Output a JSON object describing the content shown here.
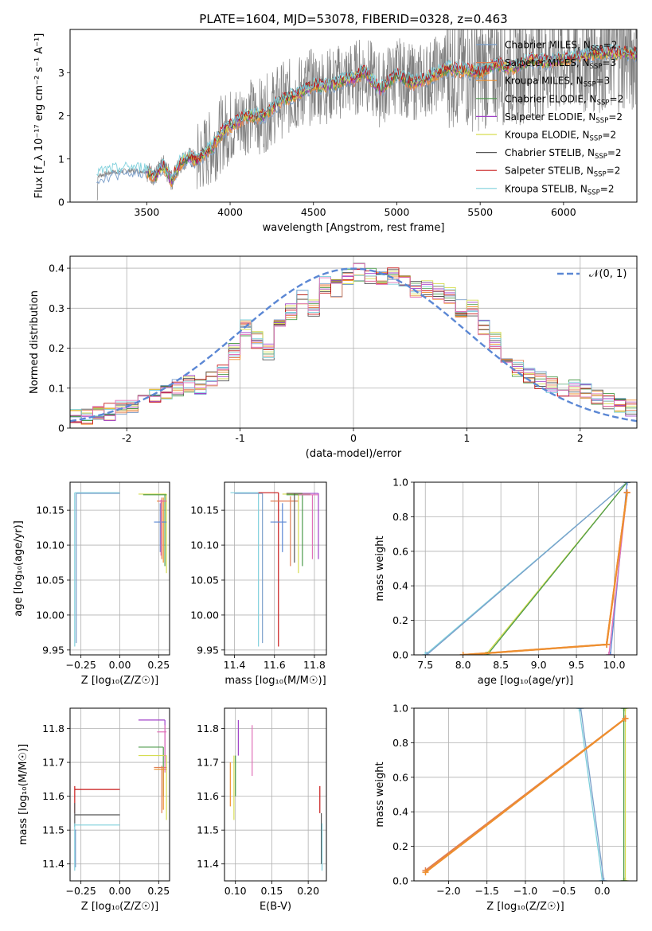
{
  "figure": {
    "title": "PLATE=1604, MJD=53078, FIBERID=0328, z=0.463"
  },
  "colors": {
    "data": "#808080",
    "gauss": "#5b87d4",
    "chabrier_miles": "#7a9ec9",
    "salpeter_miles": "#e07f55",
    "kroupa_miles": "#ee8f2e",
    "chabrier_elodie": "#4c9a4a",
    "salpeter_elodie": "#a040c8",
    "kroupa_elodie": "#d6dd50",
    "chabrier_stelib": "#555555",
    "salpeter_stelib": "#c81818",
    "kroupa_stelib": "#7fd0dc",
    "pink": "#e070b8"
  },
  "chart_data": [
    {
      "id": "spectrum",
      "type": "line",
      "xlabel": "wavelength [Angstrom, rest frame]",
      "ylabel": "Flux [f_λ 10⁻¹⁷ erg cm⁻² s⁻¹ A⁻¹]",
      "xlim": [
        3040,
        6440
      ],
      "ylim": [
        0,
        4
      ],
      "xticks": [
        3500,
        4000,
        4500,
        5000,
        5500,
        6000
      ],
      "yticks": [
        0,
        1,
        2,
        3
      ],
      "grid": false,
      "legend_position": "top-right",
      "legend": [
        {
          "label": "Chabrier MILES, N_SSP=2",
          "color_key": "chabrier_miles"
        },
        {
          "label": "Salpeter MILES, N_SSP=3",
          "color_key": "salpeter_miles"
        },
        {
          "label": "Kroupa MILES, N_SSP=3",
          "color_key": "kroupa_miles"
        },
        {
          "label": "Chabrier ELODIE, N_SSP=2",
          "color_key": "chabrier_elodie"
        },
        {
          "label": "Salpeter ELODIE, N_SSP=2",
          "color_key": "salpeter_elodie"
        },
        {
          "label": "Kroupa ELODIE, N_SSP=2",
          "color_key": "kroupa_elodie"
        },
        {
          "label": "Chabrier STELIB, N_SSP=2",
          "color_key": "chabrier_stelib"
        },
        {
          "label": "Salpeter STELIB, N_SSP=2",
          "color_key": "salpeter_stelib"
        },
        {
          "label": "Kroupa STELIB, N_SSP=2",
          "color_key": "kroupa_stelib"
        }
      ],
      "model_continuum": {
        "x": [
          3200,
          3300,
          3400,
          3500,
          3550,
          3600,
          3650,
          3700,
          3750,
          3800,
          3850,
          3900,
          3950,
          4000,
          4100,
          4200,
          4300,
          4400,
          4500,
          4600,
          4700,
          4750,
          4800,
          4900,
          5000,
          5100,
          5200,
          5300,
          5400,
          5500,
          5600,
          5700,
          5800,
          5900,
          6000,
          6100,
          6200
        ],
        "y": [
          0.6,
          0.7,
          0.73,
          0.72,
          0.6,
          0.85,
          0.5,
          0.9,
          1.05,
          0.95,
          1.15,
          1.3,
          1.6,
          1.75,
          2.0,
          2.0,
          2.35,
          2.5,
          2.7,
          2.7,
          2.85,
          2.85,
          3.05,
          2.6,
          2.95,
          2.75,
          2.9,
          3.1,
          3.05,
          3.0,
          3.2,
          3.1,
          3.3,
          3.25,
          3.3,
          3.4,
          3.45
        ]
      },
      "observed_x_range": [
        3200,
        6440
      ]
    },
    {
      "id": "residuals",
      "type": "line",
      "xlabel": "(data-model)/error",
      "ylabel": "Normed distribution",
      "xlim": [
        -2.5,
        2.5
      ],
      "ylim": [
        0,
        0.43
      ],
      "xticks": [
        -2,
        -1,
        0,
        1,
        2
      ],
      "yticks": [
        0.0,
        0.1,
        0.2,
        0.3,
        0.4
      ],
      "grid": true,
      "legend_position": "top-right",
      "legend": [
        {
          "label": "𝒩(0, 1)",
          "color_key": "gauss"
        }
      ],
      "histogram": {
        "bin_width": 0.1,
        "x_start": -2.5,
        "values": [
          0.03,
          0.03,
          0.035,
          0.04,
          0.05,
          0.06,
          0.07,
          0.08,
          0.09,
          0.1,
          0.11,
          0.1,
          0.12,
          0.14,
          0.19,
          0.25,
          0.22,
          0.19,
          0.26,
          0.29,
          0.33,
          0.3,
          0.36,
          0.35,
          0.38,
          0.39,
          0.38,
          0.37,
          0.38,
          0.36,
          0.35,
          0.35,
          0.34,
          0.33,
          0.3,
          0.3,
          0.25,
          0.22,
          0.18,
          0.15,
          0.13,
          0.12,
          0.11,
          0.1,
          0.1,
          0.09,
          0.08,
          0.07,
          0.06,
          0.05
        ]
      }
    },
    {
      "id": "age_vs_Z",
      "type": "scatter",
      "xlabel": "Z [log₁₀(Z/Z☉)]",
      "ylabel": "age  [log₁₀(age/yr)]",
      "xlim": [
        -0.32,
        0.32
      ],
      "ylim": [
        9.943,
        10.19
      ],
      "xticks": [
        -0.25,
        0.0,
        0.25
      ],
      "xtick_labels": [
        "−0.25",
        "0.00",
        "0.25"
      ],
      "yticks": [
        9.95,
        10.0,
        10.05,
        10.1,
        10.15
      ],
      "ytick_labels": [
        "9.95",
        "10.00",
        "10.05",
        "10.10",
        "10.15"
      ],
      "grid": true
    },
    {
      "id": "age_vs_mass",
      "type": "scatter",
      "xlabel": "mass [log₁₀(M/M☉)]",
      "ylabel": "",
      "xlim": [
        11.35,
        11.86
      ],
      "ylim": [
        9.943,
        10.19
      ],
      "xticks": [
        11.4,
        11.6,
        11.8
      ],
      "xtick_labels": [
        "11.4",
        "11.6",
        "11.8"
      ],
      "yticks": [
        9.95,
        10.0,
        10.05,
        10.1,
        10.15
      ],
      "ytick_labels": [
        "9.95",
        "10.00",
        "10.05",
        "10.10",
        "10.15"
      ],
      "grid": true
    },
    {
      "id": "massweight_vs_age",
      "type": "line",
      "xlabel": "age  [log₁₀(age/yr)]",
      "ylabel": "mass weight",
      "xlim": [
        7.35,
        10.3
      ],
      "ylim": [
        0,
        1
      ],
      "xticks": [
        7.5,
        8.0,
        8.5,
        9.0,
        9.5,
        10.0
      ],
      "xtick_labels": [
        "7.5",
        "8.0",
        "8.5",
        "9.0",
        "9.5",
        "10.0"
      ],
      "yticks": [
        0.0,
        0.2,
        0.4,
        0.6,
        0.8,
        1.0
      ],
      "ytick_labels": [
        "0.0",
        "0.2",
        "0.4",
        "0.6",
        "0.8",
        "1.0"
      ],
      "grid": true,
      "series": [
        {
          "color_key": "kroupa_stelib",
          "x": [
            7.5,
            10.17
          ],
          "y": [
            0.0,
            1.0
          ]
        },
        {
          "color_key": "chabrier_miles",
          "x": [
            7.52,
            10.17
          ],
          "y": [
            0.0,
            1.0
          ]
        },
        {
          "color_key": "kroupa_elodie",
          "x": [
            8.3,
            10.17
          ],
          "y": [
            0.0,
            1.0
          ]
        },
        {
          "color_key": "chabrier_elodie",
          "x": [
            8.32,
            10.17
          ],
          "y": [
            0.0,
            1.0
          ]
        },
        {
          "color_key": "gauss",
          "x": [
            9.95,
            10.17
          ],
          "y": [
            0.0,
            1.0
          ]
        },
        {
          "color_key": "pink",
          "x": [
            9.93,
            10.17
          ],
          "y": [
            0.0,
            0.94
          ]
        },
        {
          "color_key": "salpeter_miles",
          "x": [
            8.0,
            9.9,
            10.17
          ],
          "y": [
            0.0,
            0.06,
            0.94
          ]
        },
        {
          "color_key": "kroupa_miles",
          "x": [
            8.0,
            9.9,
            10.17
          ],
          "y": [
            0.0,
            0.06,
            0.94
          ]
        }
      ]
    },
    {
      "id": "mass_vs_Z",
      "type": "scatter",
      "xlabel": "Z [log₁₀(Z/Z☉)]",
      "ylabel": "mass [log₁₀(M/M☉)]",
      "xlim": [
        -0.32,
        0.32
      ],
      "ylim": [
        11.35,
        11.86
      ],
      "xticks": [
        -0.25,
        0.0,
        0.25
      ],
      "xtick_labels": [
        "−0.25",
        "0.00",
        "0.25"
      ],
      "yticks": [
        11.4,
        11.5,
        11.6,
        11.7,
        11.8
      ],
      "ytick_labels": [
        "11.4",
        "11.5",
        "11.6",
        "11.7",
        "11.8"
      ],
      "grid": true
    },
    {
      "id": "mass_vs_EBV",
      "type": "scatter",
      "xlabel": "E(B-V)",
      "ylabel": "",
      "xlim": [
        0.085,
        0.225
      ],
      "ylim": [
        11.35,
        11.86
      ],
      "xticks": [
        0.1,
        0.15,
        0.2
      ],
      "xtick_labels": [
        "0.10",
        "0.15",
        "0.20"
      ],
      "yticks": [
        11.4,
        11.5,
        11.6,
        11.7,
        11.8
      ],
      "ytick_labels": [
        "11.4",
        "11.5",
        "11.6",
        "11.7",
        "11.8"
      ],
      "grid": true
    },
    {
      "id": "massweight_vs_Z",
      "type": "line",
      "xlabel": "Z [log₁₀(Z/Z☉)]",
      "ylabel": "mass weight",
      "xlim": [
        -2.45,
        0.45
      ],
      "ylim": [
        0,
        1
      ],
      "xticks": [
        -2.0,
        -1.5,
        -1.0,
        -0.5,
        0.0
      ],
      "xtick_labels": [
        "−2.0",
        "−1.5",
        "−1.0",
        "−0.5",
        "0.0"
      ],
      "yticks": [
        0.0,
        0.2,
        0.4,
        0.6,
        0.8,
        1.0
      ],
      "ytick_labels": [
        "0.0",
        "0.2",
        "0.4",
        "0.6",
        "0.8",
        "1.0"
      ],
      "grid": true,
      "series": [
        {
          "color_key": "kroupa_stelib",
          "x": [
            -0.3,
            0.0
          ],
          "y": [
            1.0,
            0.0
          ]
        },
        {
          "color_key": "chabrier_miles",
          "x": [
            -0.28,
            0.02
          ],
          "y": [
            1.0,
            0.0
          ]
        },
        {
          "color_key": "kroupa_elodie",
          "x": [
            0.3,
            0.3
          ],
          "y": [
            0.0,
            1.0
          ]
        },
        {
          "color_key": "chabrier_elodie",
          "x": [
            0.28,
            0.28
          ],
          "y": [
            0.0,
            1.0
          ]
        },
        {
          "color_key": "salpeter_miles",
          "x": [
            -2.3,
            0.3
          ],
          "y": [
            0.06,
            0.94
          ]
        },
        {
          "color_key": "kroupa_miles",
          "x": [
            -2.3,
            0.3
          ],
          "y": [
            0.05,
            0.94
          ]
        }
      ]
    }
  ]
}
